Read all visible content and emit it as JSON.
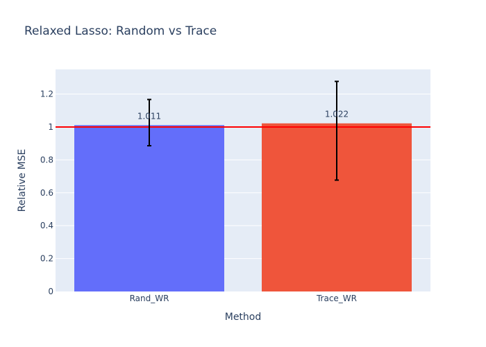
{
  "chart_data": {
    "type": "bar",
    "title": "Relaxed Lasso: Random vs Trace",
    "xlabel": "Method",
    "ylabel": "Relative MSE",
    "categories": [
      "Rand_WR",
      "Trace_WR"
    ],
    "values": [
      1.011,
      1.022
    ],
    "value_labels": [
      "1.011",
      "1.022"
    ],
    "error_low": [
      0.886,
      0.677
    ],
    "error_high": [
      1.167,
      1.277
    ],
    "bar_colors": [
      "#636efa",
      "#ef553b"
    ],
    "reference_line": {
      "y": 1,
      "color": "#ff0000"
    },
    "ylim": [
      0,
      1.35
    ],
    "yticks": [
      0,
      0.2,
      0.4,
      0.6,
      0.8,
      1,
      1.2
    ],
    "ytick_labels": [
      "0",
      "0.2",
      "0.4",
      "0.6",
      "0.8",
      "1",
      "1.2"
    ],
    "grid": true,
    "legend": "none",
    "plot_background": "#e5ecf6",
    "error_bar_color": "#000000"
  }
}
